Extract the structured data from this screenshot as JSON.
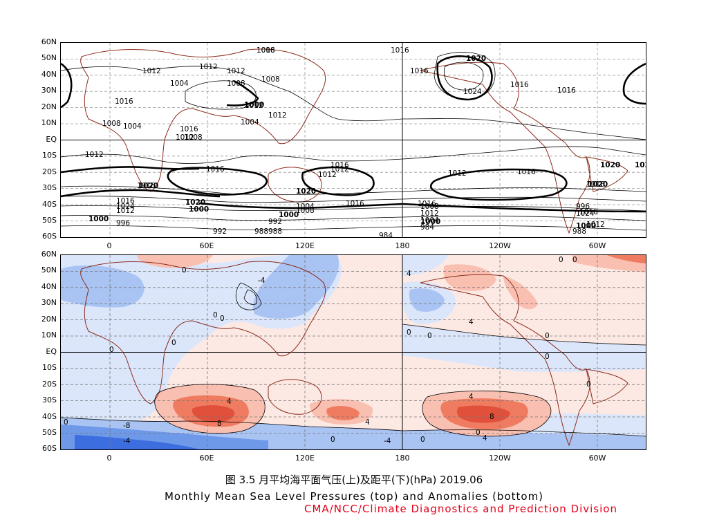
{
  "lat_labels": [
    "60N",
    "50N",
    "40N",
    "30N",
    "20N",
    "10N",
    "EQ",
    "10S",
    "20S",
    "30S",
    "40S",
    "50S",
    "60S"
  ],
  "lon_labels": [
    "0",
    "60E",
    "120E",
    "180",
    "120W",
    "60W"
  ],
  "top_panel": {
    "contour_labels": [
      "1008",
      "1016",
      "1020",
      "1012",
      "1016",
      "1004",
      "1012",
      "1012",
      "1008",
      "1008",
      "1024",
      "1016",
      "1016",
      "1016",
      "1012",
      "1000",
      "1004",
      "1016",
      "1012",
      "1008",
      "1004",
      "1008",
      "1012",
      "1012",
      "1016",
      "1016",
      "1012",
      "1012",
      "1016",
      "1016",
      "1012",
      "1020",
      "1016",
      "1020",
      "1020",
      "1020",
      "1020",
      "1016",
      "1016",
      "1024",
      "1016",
      "1012",
      "1012",
      "1008",
      "1008",
      "1004",
      "1004",
      "1000",
      "1000",
      "1000",
      "1000",
      "1000",
      "996",
      "992",
      "992",
      "988",
      "988",
      "984",
      "984",
      "988",
      "996",
      "1016",
      "1012",
      "1020",
      "1024",
      "1016"
    ]
  },
  "bottom_panel": {
    "contour_labels": [
      "0",
      "0",
      "0",
      "0",
      "0",
      "0",
      "0",
      "0",
      "0",
      "4",
      "4",
      "4",
      "4",
      "4",
      "4",
      "8",
      "8",
      "-4",
      "-4",
      "-8",
      "-4",
      "0",
      "0",
      "0",
      "0",
      "0",
      "0",
      "0"
    ],
    "colors": {
      "pos_light": "#fde9e4",
      "pos_mid": "#f9bfb0",
      "pos_strong": "#ef7b60",
      "pos_max": "#e0503a",
      "neg_light": "#dbe6fb",
      "neg_mid": "#a9c3f3",
      "neg_strong": "#6e98e8",
      "neg_max": "#3c6ee0"
    }
  },
  "caption": {
    "line1": "图 3.5  月平均海平面气压(上)及距平(下)(hPa)  2019.06",
    "line2": "Monthly Mean Sea Level Pressures (top) and Anomalies (bottom)",
    "line3": "CMA/NCC/Climate Diagnostics and Prediction Division"
  }
}
